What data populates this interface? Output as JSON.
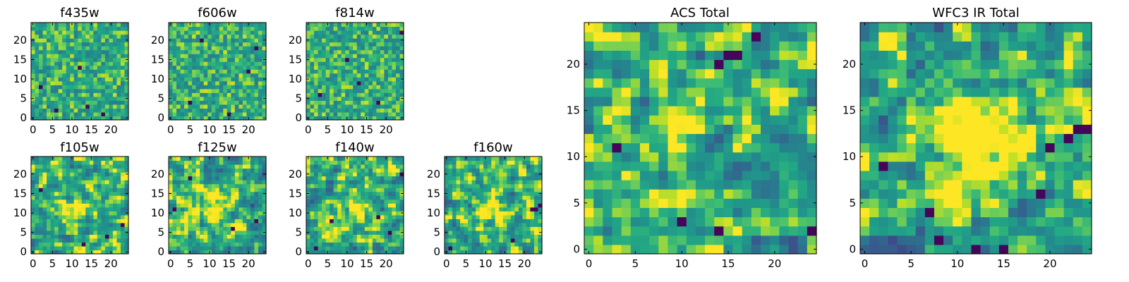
{
  "chart_data": [
    {
      "type": "heatmap",
      "title": "f435w",
      "seed": 11,
      "smooth": 0,
      "blob": [
        10,
        12,
        0.0
      ],
      "dark_spots": [
        [
          12,
          13
        ],
        [
          14,
          3
        ],
        [
          6,
          2
        ],
        [
          18,
          1
        ],
        [
          2,
          8
        ]
      ],
      "xticks": [
        "0",
        "5",
        "10",
        "15",
        "20"
      ],
      "yticks": [
        "0",
        "5",
        "10",
        "15",
        "20"
      ],
      "grid_size": 25,
      "value_range": [
        0,
        1
      ],
      "colormap": "viridis"
    },
    {
      "type": "heatmap",
      "title": "f606w",
      "seed": 23,
      "smooth": 0,
      "blob": [
        10,
        12,
        0.0
      ],
      "dark_spots": [
        [
          8,
          20
        ],
        [
          20,
          12
        ],
        [
          5,
          4
        ],
        [
          15,
          1
        ],
        [
          22,
          18
        ]
      ],
      "xticks": [
        "0",
        "5",
        "10",
        "15",
        "20"
      ],
      "yticks": [
        "0",
        "5",
        "10",
        "15",
        "20"
      ],
      "grid_size": 25,
      "value_range": [
        0,
        1
      ],
      "colormap": "viridis"
    },
    {
      "type": "heatmap",
      "title": "f814w",
      "seed": 37,
      "smooth": 0,
      "blob": [
        10,
        12,
        0.0
      ],
      "dark_spots": [
        [
          24,
          22
        ],
        [
          3,
          6
        ],
        [
          10,
          15
        ],
        [
          18,
          4
        ],
        [
          13,
          9
        ]
      ],
      "xticks": [
        "0",
        "5",
        "10",
        "15",
        "20"
      ],
      "yticks": [
        "0",
        "5",
        "10",
        "15",
        "20"
      ],
      "grid_size": 25,
      "value_range": [
        0,
        1
      ],
      "colormap": "viridis"
    },
    {
      "type": "heatmap",
      "title": "f105w",
      "seed": 41,
      "smooth": 1,
      "blob": [
        11,
        11,
        0.25
      ],
      "dark_spots": [
        [
          23,
          7
        ],
        [
          19,
          4
        ],
        [
          2,
          16
        ],
        [
          13,
          2
        ]
      ],
      "xticks": [
        "0",
        "5",
        "10",
        "15",
        "20"
      ],
      "yticks": [
        "0",
        "5",
        "10",
        "15",
        "20"
      ],
      "grid_size": 25,
      "value_range": [
        0,
        1
      ],
      "colormap": "viridis"
    },
    {
      "type": "heatmap",
      "title": "f125w",
      "seed": 53,
      "smooth": 1,
      "blob": [
        11,
        11,
        0.25
      ],
      "dark_spots": [
        [
          16,
          6
        ],
        [
          5,
          19
        ],
        [
          1,
          11
        ],
        [
          22,
          8
        ]
      ],
      "xticks": [
        "0",
        "5",
        "10",
        "15",
        "20"
      ],
      "yticks": [
        "0",
        "5",
        "10",
        "15",
        "20"
      ],
      "grid_size": 25,
      "value_range": [
        0,
        1
      ],
      "colormap": "viridis"
    },
    {
      "type": "heatmap",
      "title": "f140w",
      "seed": 67,
      "smooth": 1,
      "blob": [
        11,
        11,
        0.2
      ],
      "dark_spots": [
        [
          24,
          20
        ],
        [
          18,
          9
        ],
        [
          2,
          1
        ],
        [
          6,
          8
        ],
        [
          21,
          5
        ]
      ],
      "xticks": [
        "0",
        "5",
        "10",
        "15",
        "20"
      ],
      "yticks": [
        "0",
        "5",
        "10",
        "15",
        "20"
      ],
      "grid_size": 25,
      "value_range": [
        0,
        1
      ],
      "colormap": "viridis"
    },
    {
      "type": "heatmap",
      "title": "f160w",
      "seed": 79,
      "smooth": 1,
      "blob": [
        11,
        11,
        0.3
      ],
      "dark_spots": [
        [
          24,
          12
        ],
        [
          23,
          11
        ],
        [
          22,
          11
        ],
        [
          1,
          1
        ],
        [
          17,
          3
        ]
      ],
      "xticks": [
        "0",
        "5",
        "10",
        "15",
        "20"
      ],
      "yticks": [
        "0",
        "5",
        "10",
        "15",
        "20"
      ],
      "grid_size": 25,
      "value_range": [
        0,
        1
      ],
      "colormap": "viridis"
    },
    {
      "type": "heatmap",
      "title": "ACS Total",
      "seed": 83,
      "smooth": 1,
      "blob": [
        10,
        13,
        0.2
      ],
      "dark_spots": [
        [
          3,
          11
        ],
        [
          15,
          21
        ],
        [
          16,
          21
        ],
        [
          14,
          20
        ],
        [
          18,
          23
        ],
        [
          10,
          3
        ],
        [
          24,
          2
        ],
        [
          14,
          2
        ]
      ],
      "xticks": [
        "0",
        "5",
        "10",
        "15",
        "20"
      ],
      "yticks": [
        "0",
        "5",
        "10",
        "15",
        "20"
      ],
      "grid_size": 25,
      "value_range": [
        0,
        1
      ],
      "colormap": "viridis"
    },
    {
      "type": "heatmap",
      "title": "WFC3 IR Total",
      "seed": 97,
      "smooth": 1,
      "blob": [
        12,
        12,
        0.45
      ],
      "dark_spots": [
        [
          24,
          13
        ],
        [
          23,
          13
        ],
        [
          22,
          12
        ],
        [
          20,
          11
        ],
        [
          7,
          4
        ],
        [
          15,
          0
        ],
        [
          12,
          0
        ],
        [
          8,
          1
        ],
        [
          19,
          6
        ],
        [
          2,
          9
        ]
      ],
      "xticks": [
        "0",
        "5",
        "10",
        "15",
        "20"
      ],
      "yticks": [
        "0",
        "5",
        "10",
        "15",
        "20"
      ],
      "grid_size": 25,
      "value_range": [
        0,
        1
      ],
      "colormap": "viridis"
    }
  ]
}
